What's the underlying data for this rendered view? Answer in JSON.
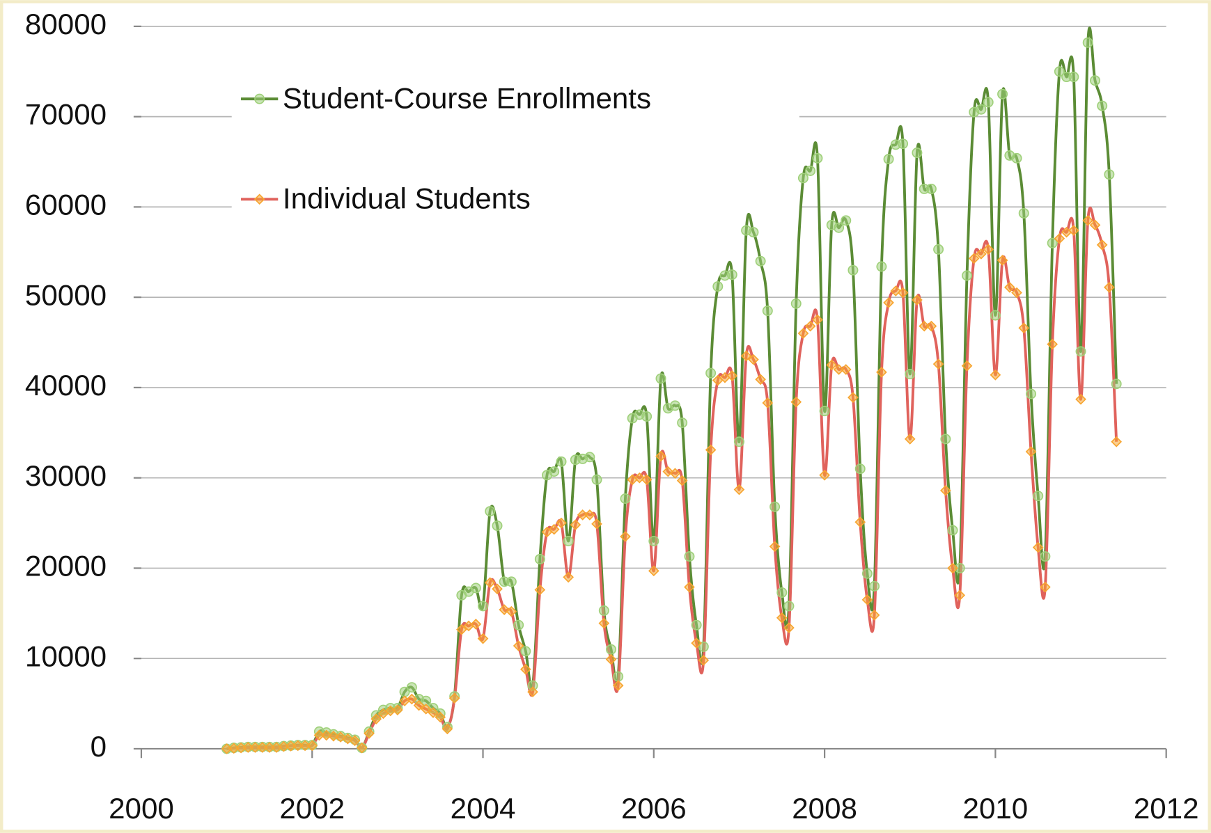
{
  "chart_data": {
    "type": "line",
    "x": [
      2001,
      2001.083,
      2001.167,
      2001.25,
      2001.333,
      2001.417,
      2001.5,
      2001.583,
      2001.667,
      2001.75,
      2001.833,
      2001.917,
      2002,
      2002.083,
      2002.167,
      2002.25,
      2002.333,
      2002.417,
      2002.5,
      2002.583,
      2002.667,
      2002.75,
      2002.833,
      2002.917,
      2003,
      2003.083,
      2003.167,
      2003.25,
      2003.333,
      2003.417,
      2003.5,
      2003.583,
      2003.667,
      2003.75,
      2003.833,
      2003.917,
      2004,
      2004.083,
      2004.167,
      2004.25,
      2004.333,
      2004.417,
      2004.5,
      2004.583,
      2004.667,
      2004.75,
      2004.833,
      2004.917,
      2005,
      2005.083,
      2005.167,
      2005.25,
      2005.333,
      2005.417,
      2005.5,
      2005.583,
      2005.667,
      2005.75,
      2005.833,
      2005.917,
      2006,
      2006.083,
      2006.167,
      2006.25,
      2006.333,
      2006.417,
      2006.5,
      2006.583,
      2006.667,
      2006.75,
      2006.833,
      2006.917,
      2007,
      2007.083,
      2007.167,
      2007.25,
      2007.333,
      2007.417,
      2007.5,
      2007.583,
      2007.667,
      2007.75,
      2007.833,
      2007.917,
      2008,
      2008.083,
      2008.167,
      2008.25,
      2008.333,
      2008.417,
      2008.5,
      2008.583,
      2008.667,
      2008.75,
      2008.833,
      2008.917,
      2009,
      2009.083,
      2009.167,
      2009.25,
      2009.333,
      2009.417,
      2009.5,
      2009.583,
      2009.667,
      2009.75,
      2009.833,
      2009.917,
      2010,
      2010.083,
      2010.167,
      2010.25,
      2010.333,
      2010.417,
      2010.5,
      2010.583,
      2010.667,
      2010.75,
      2010.833,
      2010.917,
      2011,
      2011.083,
      2011.167,
      2011.25,
      2011.333,
      2011.417
    ],
    "series": [
      {
        "name": "Student-Course Enrollments",
        "color": "#5b8c35",
        "marker_color": "#9fd07a",
        "marker": "circle",
        "values": [
          0,
          100,
          150,
          200,
          200,
          200,
          200,
          200,
          300,
          350,
          400,
          400,
          400,
          1900,
          1800,
          1600,
          1400,
          1200,
          1000,
          100,
          1900,
          3700,
          4300,
          4500,
          4500,
          6300,
          6800,
          5500,
          5300,
          4500,
          3900,
          2400,
          5800,
          17000,
          17400,
          17800,
          15800,
          26300,
          24700,
          18500,
          18500,
          13700,
          10800,
          7000,
          21000,
          30300,
          30700,
          31800,
          23000,
          32000,
          32100,
          32300,
          29800,
          15300,
          11000,
          8000,
          27700,
          36600,
          37000,
          36800,
          23000,
          41000,
          37700,
          38000,
          36100,
          21300,
          13700,
          11300,
          41600,
          51200,
          52400,
          52500,
          34000,
          57400,
          57200,
          54000,
          48500,
          26800,
          17300,
          15800,
          49300,
          63200,
          64000,
          65400,
          37400,
          58000,
          57700,
          58500,
          53000,
          31000,
          19400,
          18000,
          53400,
          65300,
          66900,
          67000,
          41500,
          66000,
          62000,
          62000,
          55300,
          34300,
          24200,
          20000,
          52400,
          70500,
          70800,
          71600,
          48000,
          72500,
          65700,
          65400,
          59300,
          39300,
          28000,
          21300,
          56000,
          75000,
          74400,
          74400,
          44000,
          78200,
          74000,
          71200,
          63600,
          40400
        ]
      },
      {
        "name": "Individual Students",
        "color": "#e0625c",
        "marker_color": "#f7a530",
        "marker": "diamond",
        "values": [
          0,
          50,
          100,
          150,
          150,
          150,
          150,
          150,
          250,
          300,
          350,
          350,
          350,
          1500,
          1500,
          1400,
          1300,
          1100,
          900,
          100,
          1700,
          3300,
          3900,
          4200,
          4300,
          5300,
          5500,
          4800,
          4400,
          4000,
          3500,
          2200,
          5600,
          13200,
          13600,
          13800,
          12200,
          18400,
          17700,
          15400,
          15200,
          11400,
          8800,
          6300,
          17600,
          24000,
          24300,
          25000,
          19000,
          24800,
          25900,
          25900,
          24900,
          13900,
          9900,
          7000,
          23500,
          29800,
          30000,
          29800,
          19700,
          32400,
          30700,
          30500,
          29700,
          17900,
          11700,
          9800,
          33100,
          40800,
          41100,
          41300,
          28700,
          43500,
          43100,
          40900,
          38300,
          22400,
          14500,
          13400,
          38400,
          46000,
          46800,
          47500,
          30300,
          42500,
          42000,
          42000,
          38900,
          25100,
          16500,
          14800,
          41700,
          49400,
          50700,
          50500,
          34300,
          49700,
          46800,
          46800,
          42600,
          28600,
          20000,
          17000,
          42400,
          54300,
          54800,
          55300,
          41400,
          54100,
          51100,
          50500,
          46600,
          32900,
          22300,
          17900,
          44800,
          56500,
          57200,
          57400,
          38700,
          58500,
          58000,
          55800,
          51100,
          34000
        ]
      }
    ],
    "xlim": [
      2000,
      2012
    ],
    "xticks": [
      2000,
      2002,
      2004,
      2006,
      2008,
      2010,
      2012
    ],
    "ylim": [
      0,
      80000
    ],
    "yticks": [
      0,
      10000,
      20000,
      30000,
      40000,
      50000,
      60000,
      70000,
      80000
    ],
    "grid": true,
    "legend": "upper left"
  }
}
